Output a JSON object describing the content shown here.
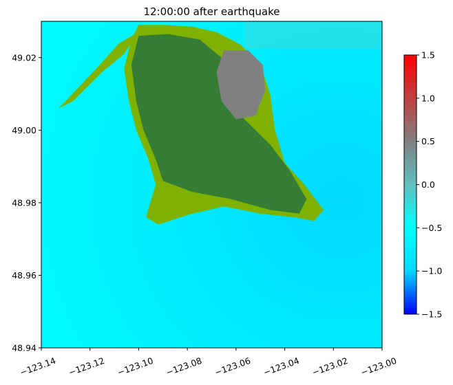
{
  "chart_data": {
    "type": "heatmap",
    "title": "12:00:00 after earthquake",
    "xlabel": "",
    "ylabel": "",
    "xlim": [
      -123.14,
      -123.0
    ],
    "ylim": [
      48.94,
      49.03
    ],
    "x_ticks": [
      -123.14,
      -123.12,
      -123.1,
      -123.08,
      -123.06,
      -123.04,
      -123.02,
      -123.0
    ],
    "x_tick_labels": [
      "−123.14",
      "−123.12",
      "−123.10",
      "−123.08",
      "−123.06",
      "−123.04",
      "−123.02",
      "−123.00"
    ],
    "y_ticks": [
      48.94,
      48.96,
      48.98,
      49.0,
      49.02
    ],
    "y_tick_labels": [
      "48.94",
      "48.96",
      "48.98",
      "49.00",
      "49.02"
    ],
    "grid": false,
    "colorbar": {
      "vmin": -1.5,
      "vmax": 1.5,
      "ticks": [
        -1.5,
        -1.0,
        -0.5,
        0.0,
        0.5,
        1.0,
        1.5
      ],
      "tick_labels": [
        "−1.5",
        "−1.0",
        "−0.5",
        "0.0",
        "0.5",
        "1.0",
        "1.5"
      ],
      "colors": [
        "#0000ff",
        "#00d8ff",
        "#00ffff",
        "#60c0c0",
        "#808080",
        "#c04040",
        "#ff0000"
      ]
    },
    "field": {
      "water_color": "#00f0ff",
      "land_color": "#7fb200",
      "inner_land_color": "#357d35",
      "elevated_color": "#808080",
      "land_outline": [
        [
          -123.1,
          49.029
        ],
        [
          -123.089,
          49.029
        ],
        [
          -123.078,
          49.0285
        ],
        [
          -123.068,
          49.027
        ],
        [
          -123.058,
          49.0235
        ],
        [
          -123.05,
          49.018
        ],
        [
          -123.046,
          49.01
        ],
        [
          -123.044,
          49.0
        ],
        [
          -123.04,
          48.991
        ],
        [
          -123.032,
          48.985
        ],
        [
          -123.024,
          48.978
        ],
        [
          -123.028,
          48.975
        ],
        [
          -123.036,
          48.976
        ],
        [
          -123.05,
          48.977
        ],
        [
          -123.065,
          48.979
        ],
        [
          -123.078,
          48.977
        ],
        [
          -123.092,
          48.974
        ],
        [
          -123.097,
          48.976
        ],
        [
          -123.093,
          48.985
        ],
        [
          -123.096,
          48.992
        ],
        [
          -123.101,
          49.0
        ],
        [
          -123.104,
          49.008
        ],
        [
          -123.106,
          49.017
        ],
        [
          -123.103,
          49.025
        ]
      ],
      "spit_outline": [
        [
          -123.1,
          49.027
        ],
        [
          -123.108,
          49.024
        ],
        [
          -123.116,
          49.018
        ],
        [
          -123.13,
          49.008
        ],
        [
          -123.133,
          49.006
        ],
        [
          -123.127,
          49.008
        ],
        [
          -123.115,
          49.016
        ],
        [
          -123.106,
          49.021
        ]
      ],
      "inner_outline": [
        [
          -123.1,
          49.026
        ],
        [
          -123.088,
          49.0265
        ],
        [
          -123.075,
          49.025
        ],
        [
          -123.066,
          49.02
        ],
        [
          -123.062,
          49.012
        ],
        [
          -123.058,
          49.004
        ],
        [
          -123.046,
          48.996
        ],
        [
          -123.038,
          48.989
        ],
        [
          -123.031,
          48.981
        ],
        [
          -123.034,
          48.977
        ],
        [
          -123.046,
          48.978
        ],
        [
          -123.062,
          48.981
        ],
        [
          -123.078,
          48.983
        ],
        [
          -123.09,
          48.986
        ],
        [
          -123.093,
          48.992
        ],
        [
          -123.098,
          49.0
        ],
        [
          -123.101,
          49.008
        ],
        [
          -123.103,
          49.018
        ]
      ],
      "elevated_outline": [
        [
          -123.065,
          49.022
        ],
        [
          -123.055,
          49.022
        ],
        [
          -123.049,
          49.018
        ],
        [
          -123.048,
          49.011
        ],
        [
          -123.052,
          49.004
        ],
        [
          -123.06,
          49.003
        ],
        [
          -123.066,
          49.008
        ],
        [
          -123.068,
          49.016
        ]
      ]
    }
  }
}
